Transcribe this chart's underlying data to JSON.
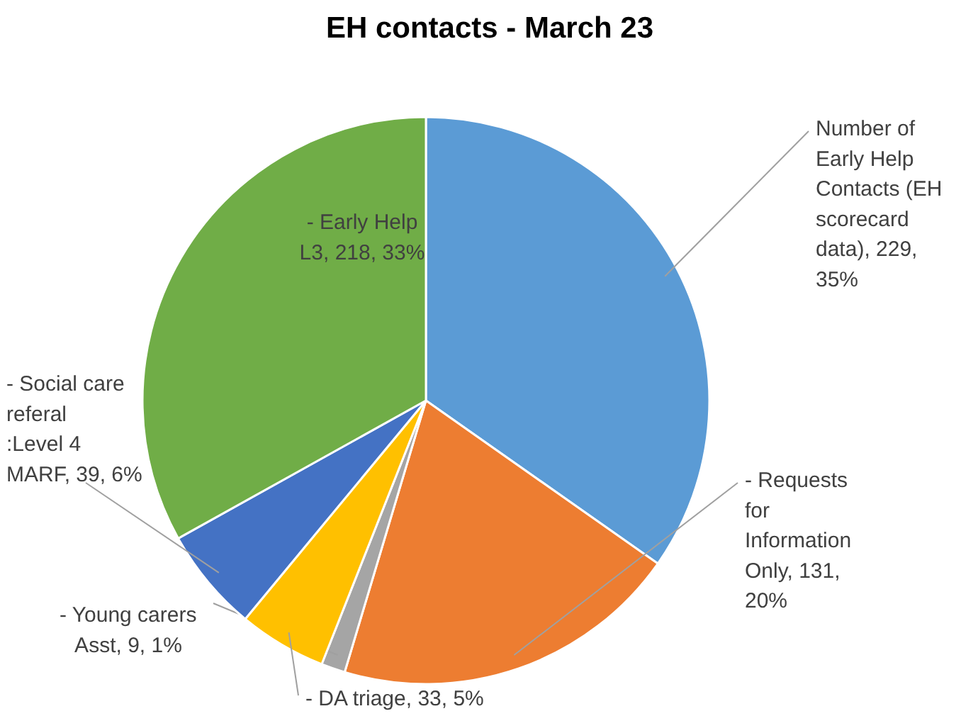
{
  "chart_data": {
    "type": "pie",
    "title": "EH contacts - March 23",
    "categories": [
      "Number of Early Help Contacts (EH scorecard data)",
      "- Requests for Information Only",
      "- Young carers Asst",
      "- DA triage",
      "- Social care referal :Level 4 MARF",
      "- Early Help L3"
    ],
    "values": [
      229,
      131,
      9,
      33,
      39,
      218
    ],
    "colors": [
      "#5b9bd5",
      "#ed7d31",
      "#a5a5a5",
      "#ffc000",
      "#4472c4",
      "#70ad47"
    ],
    "value_labels": [
      "229, 35%",
      "131, 20%",
      "9, 1%",
      "33, 5%",
      "39, 6%",
      "218, 33%"
    ]
  }
}
